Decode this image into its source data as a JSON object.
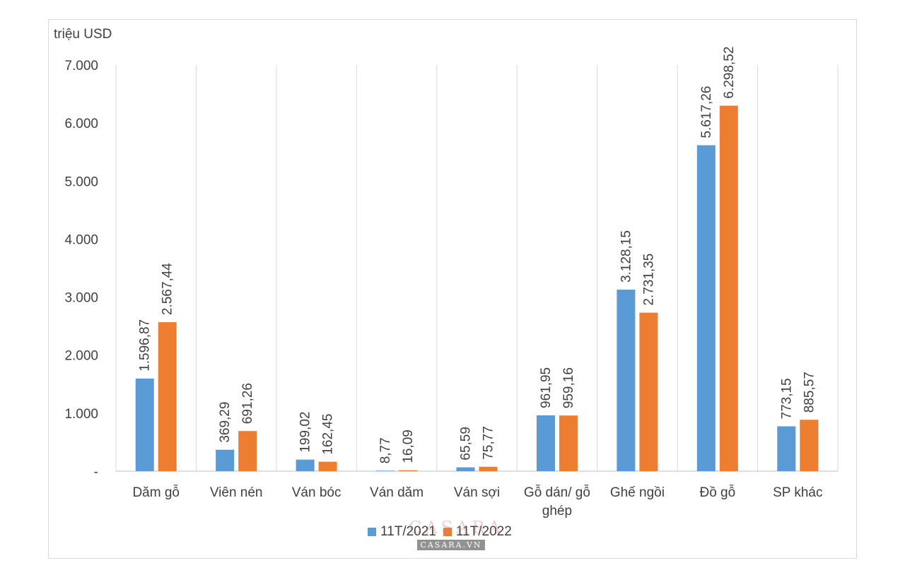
{
  "chart_data": {
    "type": "bar",
    "title": "",
    "ylabel": "triệu USD",
    "xlabel": "",
    "ylim": [
      0,
      7000
    ],
    "yticks": [
      0,
      1000,
      2000,
      3000,
      4000,
      5000,
      6000,
      7000
    ],
    "ytick_labels": [
      "-",
      "1.000",
      "2.000",
      "3.000",
      "4.000",
      "5.000",
      "6.000",
      "7.000"
    ],
    "grid": "vertical category separators",
    "legend_position": "bottom",
    "categories": [
      "Dăm gỗ",
      "Viên nén",
      "Ván bóc",
      "Ván dăm",
      "Ván sợi",
      "Gỗ dán/ gỗ ghép",
      "Ghế ngồi",
      "Đồ gỗ",
      "SP khác"
    ],
    "series": [
      {
        "name": "11T/2021",
        "color": "#5b9bd5",
        "values": [
          1596.87,
          369.29,
          199.02,
          8.77,
          65.59,
          961.95,
          3128.15,
          5617.26,
          773.15
        ],
        "labels": [
          "1.596,87",
          "369,29",
          "199,02",
          "8,77",
          "65,59",
          "961,95",
          "3.128,15",
          "5.617,26",
          "773,15"
        ]
      },
      {
        "name": "11T/2022",
        "color": "#ed7d31",
        "values": [
          2567.44,
          691.26,
          162.45,
          16.09,
          75.77,
          959.16,
          2731.35,
          6298.52,
          885.57
        ],
        "labels": [
          "2.567,44",
          "691,26",
          "162,45",
          "16,09",
          "75,77",
          "959,16",
          "2.731,35",
          "6.298,52",
          "885,57"
        ]
      }
    ]
  },
  "watermark": {
    "brand": "CASARA",
    "site": "CASARA.VN"
  }
}
